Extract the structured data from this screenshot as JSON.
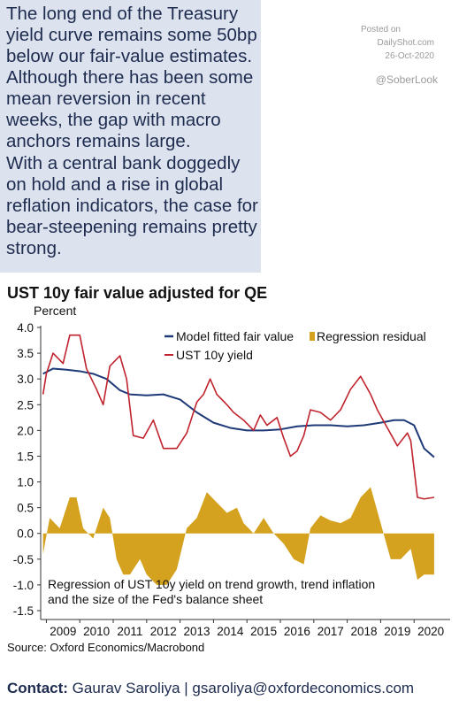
{
  "text_panel": {
    "paragraph_1": "The long end of the Treasury yield curve remains some 50bp below our fair-value estimates. Although there has been some mean reversion in recent weeks, the gap with macro anchors remains large.",
    "paragraph_2": "With a central bank doggedly on hold and a rise in global reflation indicators, the case for bear-steepening remains pretty strong."
  },
  "watermark": {
    "posted_on": "Posted on",
    "site": "DailyShot.com",
    "date": "26-Oct-2020",
    "handle": "@SoberLook"
  },
  "source": "Source: Oxford Economics/Macrobond",
  "contact": {
    "label": "Contact:",
    "text": " Gaurav Saroliya | gsaroliya@oxfordeconomics.com"
  },
  "colors": {
    "fair_value": "#1f3a78",
    "yield": "#c0232d",
    "residual": "#d4a21f"
  },
  "chart_data": {
    "type": "line",
    "title": "UST 10y fair value adjusted for QE",
    "ylabel": "Percent",
    "xlabel": "",
    "ylim": [
      -1.5,
      4.0
    ],
    "xlim": [
      2008.83,
      2020.92
    ],
    "yticks": [
      "4.0",
      "3.5",
      "3.0",
      "2.5",
      "2.0",
      "1.5",
      "1.0",
      "0.5",
      "0.0",
      "-0.5",
      "-1.0",
      "-1.5"
    ],
    "ytick_values": [
      4.0,
      3.5,
      3.0,
      2.5,
      2.0,
      1.5,
      1.0,
      0.5,
      0.0,
      -0.5,
      -1.0,
      -1.5
    ],
    "xticks": [
      "2009",
      "2010",
      "2011",
      "2012",
      "2013",
      "2014",
      "2015",
      "2016",
      "2017",
      "2018",
      "2019",
      "2020"
    ],
    "annotation": "Regression of UST 10y yield on trend growth, trend inflation and the size of the Fed's balance sheet",
    "legend": {
      "placement": "top-right"
    },
    "series": [
      {
        "name": "Model fitted fair value",
        "kind": "line",
        "x": [
          2008.9,
          2009.2,
          2009.6,
          2010.0,
          2010.4,
          2010.8,
          2011.2,
          2011.5,
          2012.0,
          2012.5,
          2013.0,
          2013.5,
          2014.0,
          2014.5,
          2015.0,
          2015.5,
          2016.0,
          2016.5,
          2017.0,
          2017.5,
          2018.0,
          2018.5,
          2019.0,
          2019.4,
          2019.7,
          2020.0,
          2020.3,
          2020.6
        ],
        "y": [
          3.1,
          3.2,
          3.18,
          3.15,
          3.1,
          3.0,
          2.78,
          2.7,
          2.68,
          2.7,
          2.6,
          2.35,
          2.15,
          2.05,
          2.0,
          2.0,
          2.02,
          2.08,
          2.1,
          2.1,
          2.08,
          2.1,
          2.15,
          2.2,
          2.2,
          2.1,
          1.65,
          1.48
        ]
      },
      {
        "name": "Regression residual",
        "kind": "area",
        "x": [
          2008.9,
          2009.1,
          2009.4,
          2009.7,
          2009.9,
          2010.1,
          2010.4,
          2010.7,
          2010.9,
          2011.1,
          2011.3,
          2011.5,
          2011.8,
          2012.0,
          2012.3,
          2012.6,
          2012.9,
          2013.2,
          2013.5,
          2013.8,
          2014.1,
          2014.4,
          2014.7,
          2014.9,
          2015.2,
          2015.5,
          2015.8,
          2016.1,
          2016.4,
          2016.7,
          2016.9,
          2017.2,
          2017.5,
          2017.8,
          2018.1,
          2018.4,
          2018.7,
          2019.0,
          2019.3,
          2019.6,
          2019.9,
          2020.1,
          2020.3,
          2020.6
        ],
        "y": [
          -0.4,
          0.3,
          0.1,
          0.7,
          0.7,
          0.1,
          -0.1,
          0.5,
          0.3,
          -0.5,
          -0.8,
          -0.8,
          -0.5,
          -0.8,
          -1.0,
          -1.0,
          -0.7,
          0.1,
          0.3,
          0.8,
          0.6,
          0.4,
          0.5,
          0.2,
          0.0,
          0.3,
          0.0,
          -0.2,
          -0.5,
          -0.6,
          0.1,
          0.35,
          0.25,
          0.2,
          0.3,
          0.7,
          0.9,
          0.2,
          -0.5,
          -0.5,
          -0.3,
          -0.9,
          -0.8,
          -0.8
        ]
      },
      {
        "name": "UST 10y yield",
        "kind": "line",
        "x": [
          2008.9,
          2009.0,
          2009.2,
          2009.5,
          2009.7,
          2010.0,
          2010.2,
          2010.5,
          2010.7,
          2010.9,
          2011.2,
          2011.4,
          2011.6,
          2011.9,
          2012.2,
          2012.5,
          2012.9,
          2013.2,
          2013.5,
          2013.7,
          2013.9,
          2014.1,
          2014.4,
          2014.6,
          2014.9,
          2015.2,
          2015.4,
          2015.6,
          2015.9,
          2016.1,
          2016.3,
          2016.5,
          2016.7,
          2016.9,
          2017.2,
          2017.5,
          2017.8,
          2018.1,
          2018.4,
          2018.7,
          2018.9,
          2019.2,
          2019.5,
          2019.8,
          2019.9,
          2020.1,
          2020.3,
          2020.6
        ],
        "y": [
          2.7,
          3.1,
          3.5,
          3.3,
          3.85,
          3.85,
          3.2,
          2.8,
          2.5,
          3.25,
          3.45,
          3.0,
          1.9,
          1.85,
          2.2,
          1.65,
          1.65,
          1.95,
          2.55,
          2.7,
          3.0,
          2.7,
          2.5,
          2.35,
          2.2,
          2.0,
          2.3,
          2.1,
          2.25,
          1.85,
          1.5,
          1.6,
          1.9,
          2.4,
          2.35,
          2.2,
          2.4,
          2.8,
          3.05,
          2.7,
          2.4,
          2.05,
          1.7,
          1.95,
          1.8,
          0.7,
          0.67,
          0.7
        ]
      }
    ]
  }
}
